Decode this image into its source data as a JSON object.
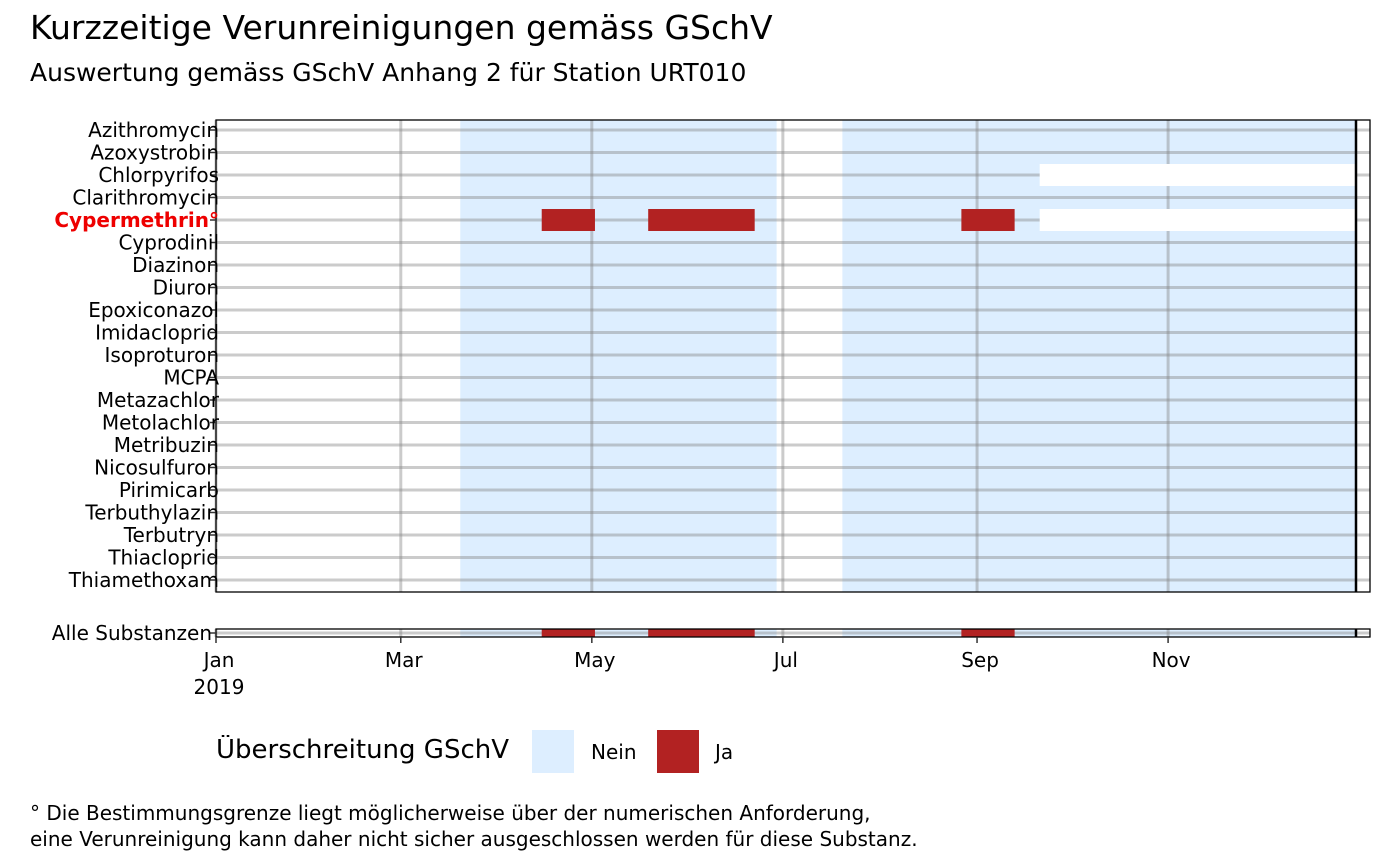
{
  "title": "Kurzzeitige Verunreinigungen gemäss GSchV",
  "subtitle": "Auswertung gemäss GSchV Anhang 2 für Station URT010",
  "chart_data": {
    "type": "timeline",
    "x_axis": {
      "range": [
        "2019-01-01",
        "2019-12-31"
      ],
      "ticks": [
        {
          "date": "2019-01-01",
          "label": "Jan",
          "sublabel": "2019"
        },
        {
          "date": "2019-03-01",
          "label": "Mar"
        },
        {
          "date": "2019-05-01",
          "label": "May"
        },
        {
          "date": "2019-07-01",
          "label": "Jul"
        },
        {
          "date": "2019-09-01",
          "label": "Sep"
        },
        {
          "date": "2019-11-01",
          "label": "Nov"
        }
      ],
      "end_marker": "2019-12-31"
    },
    "substances": [
      "Azithromycin",
      "Azoxystrobin",
      "Chlorpyrifos",
      "Clarithromycin",
      "Cypermethrin°",
      "Cyprodinil",
      "Diazinon",
      "Diuron",
      "Epoxiconazol",
      "Imidacloprid",
      "Isoproturon",
      "MCPA",
      "Metazachlor",
      "Metolachlor",
      "Metribuzin",
      "Nicosulfuron",
      "Pirimicarb",
      "Terbuthylazin",
      "Terbutryn",
      "Thiacloprid",
      "Thiamethoxam"
    ],
    "highlighted_substance": "Cypermethrin°",
    "highlight_color": "#ee0000",
    "sampling_periods": [
      {
        "start": "2019-03-20",
        "end": "2019-06-29"
      },
      {
        "start": "2019-07-20",
        "end": "2019-12-31"
      }
    ],
    "no_data_periods": [
      {
        "substance": "Chlorpyrifos",
        "start": "2019-09-21",
        "end": "2019-12-31"
      },
      {
        "substance": "Cypermethrin°",
        "start": "2019-09-21",
        "end": "2019-12-31"
      }
    ],
    "exceedances": [
      {
        "substance": "Cypermethrin°",
        "start": "2019-04-15",
        "end": "2019-05-02"
      },
      {
        "substance": "Cypermethrin°",
        "start": "2019-05-19",
        "end": "2019-06-22"
      },
      {
        "substance": "Cypermethrin°",
        "start": "2019-08-27",
        "end": "2019-09-13"
      }
    ],
    "summary_row": {
      "label": "Alle Substanzen",
      "exceedances": [
        {
          "start": "2019-04-15",
          "end": "2019-05-02"
        },
        {
          "start": "2019-05-19",
          "end": "2019-06-22"
        },
        {
          "start": "2019-08-27",
          "end": "2019-09-13"
        }
      ]
    },
    "grid": true,
    "legend": {
      "title": "Überschreitung GSchV",
      "position": "bottom",
      "items": [
        {
          "label": "Nein",
          "color": "#ddeeff"
        },
        {
          "label": "Ja",
          "color": "#b22222"
        }
      ]
    }
  },
  "footnote": [
    "° Die Bestimmungsgrenze liegt möglicherweise über der numerischen Anforderung,",
    "eine Verunreinigung kann daher nicht sicher ausgeschlossen werden für diese Substanz."
  ]
}
